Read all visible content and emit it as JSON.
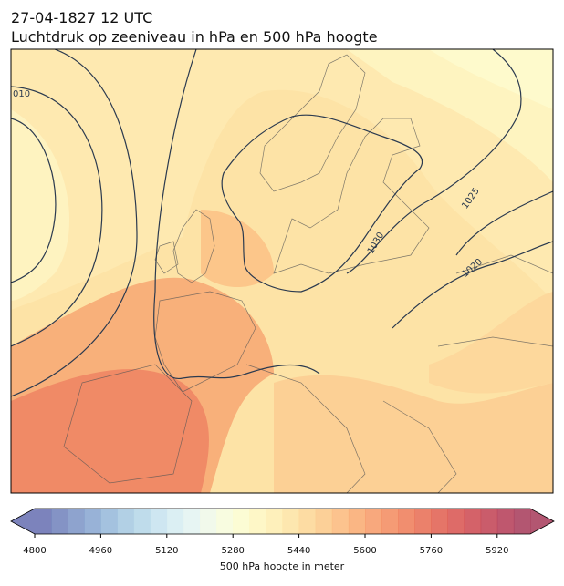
{
  "header": {
    "title": "27-04-1827 12 UTC",
    "subtitle": "Luchtdruk op zeeniveau in hPa en 500 hPa hoogte"
  },
  "map": {
    "contour_labels": [
      "010",
      "1030",
      "1025",
      "1020"
    ]
  },
  "colorbar": {
    "type": "colorbar",
    "label": "500 hPa hoogte in meter",
    "xlim": [
      4800,
      6000
    ],
    "xticks": [
      4800,
      4960,
      5120,
      5280,
      5440,
      5600,
      5760,
      5920
    ],
    "colors": [
      "#656db0",
      "#6f80bb",
      "#7a93c6",
      "#86a5d0",
      "#94b7d9",
      "#a4c8e1",
      "#b4d6e8",
      "#c5e2ee",
      "#d5ecf1",
      "#e3f3f1",
      "#eef8e8",
      "#f7fbda",
      "#fcfbcc",
      "#fef6bd",
      "#feedaf",
      "#fde3a1",
      "#fdd693",
      "#fcc886",
      "#fbb97a",
      "#f9a96f",
      "#f79966",
      "#f3895d",
      "#ee7a56",
      "#e86b51",
      "#e15d4e",
      "#d8514e",
      "#cd474f",
      "#c13f51",
      "#b43a55",
      "#a63858"
    ]
  }
}
